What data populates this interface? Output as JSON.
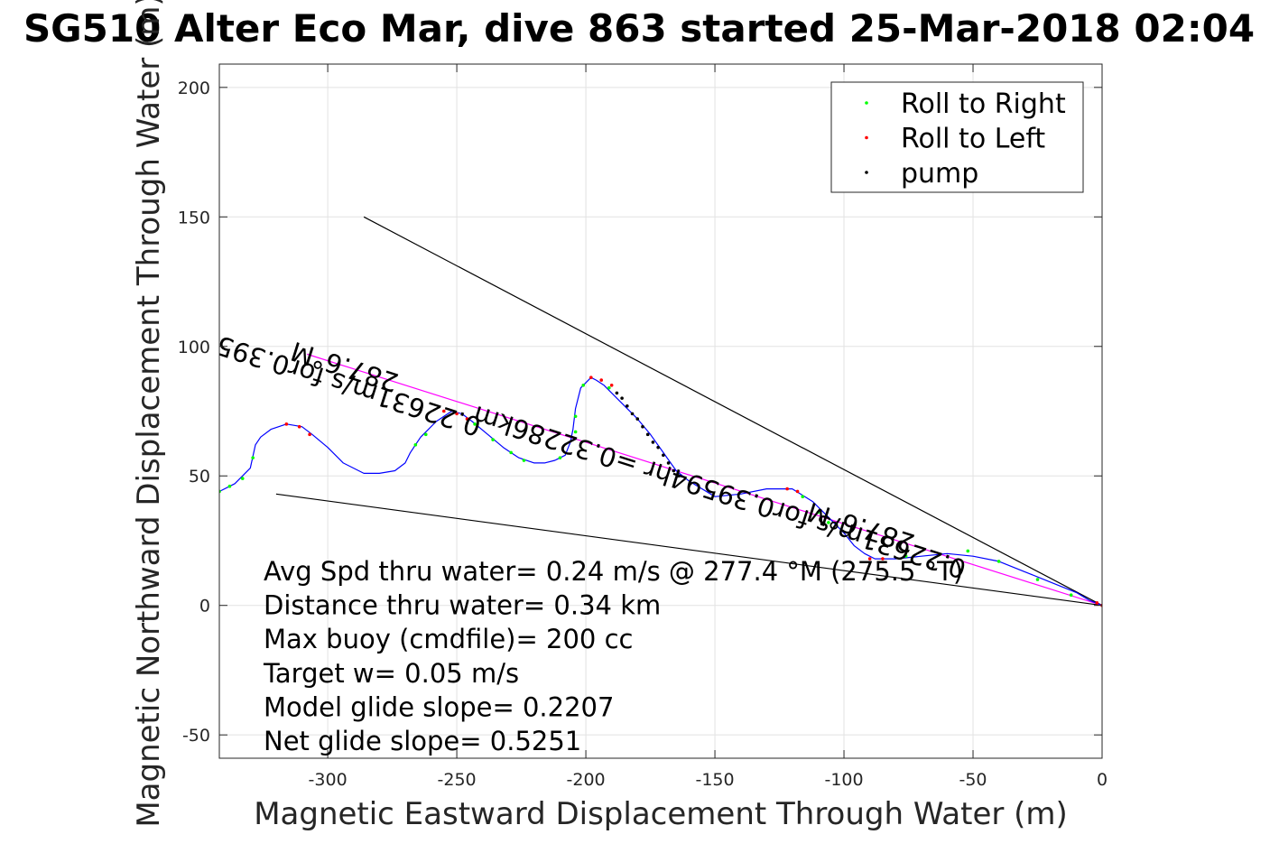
{
  "chart_data": {
    "type": "line",
    "title": "SG510 Alter Eco Mar, dive 863 started 25-Mar-2018 02:04",
    "xlabel": "Magnetic Eastward Displacement Through Water (m)",
    "ylabel": "Magnetic Northward Displacement Through Water (m)",
    "xlim": [
      -342,
      0
    ],
    "ylim": [
      -59,
      209
    ],
    "xticks": [
      -300,
      -250,
      -200,
      -150,
      -100,
      -50,
      0
    ],
    "yticks": [
      -50,
      0,
      50,
      100,
      150,
      200
    ],
    "grid": true,
    "legend_position": "top-right",
    "legend": [
      {
        "name": "Roll to Right",
        "color": "#00ff00"
      },
      {
        "name": "Roll to Left",
        "color": "#ff0000"
      },
      {
        "name": "pump",
        "color": "#000000"
      }
    ],
    "track": {
      "color": "#0000ff",
      "x": [
        -342,
        -336,
        -330,
        -328,
        -326,
        -322,
        -316,
        -310,
        -306,
        -300,
        -294,
        -286,
        -280,
        -274,
        -270,
        -268,
        -266,
        -264,
        -258,
        -252,
        -248,
        -244,
        -238,
        -232,
        -226,
        -220,
        -216,
        -212,
        -208,
        -206,
        -205,
        -204,
        -202,
        -198,
        -196,
        -193,
        -190,
        -185,
        -180,
        -175,
        -170,
        -165,
        -160,
        -150,
        -140,
        -130,
        -120,
        -112,
        -106,
        -100,
        -96,
        -92,
        -88,
        -80,
        -70,
        -60,
        -50,
        -40,
        -30,
        -20,
        -10,
        -5,
        0
      ],
      "y": [
        44,
        47,
        53,
        62,
        65,
        68,
        70,
        69,
        66,
        61,
        55,
        51,
        51,
        52,
        55,
        59,
        62,
        65,
        71,
        75,
        74,
        71,
        66,
        61,
        57,
        55,
        55,
        56,
        58,
        63,
        68,
        76,
        84,
        88,
        87,
        85,
        82,
        77,
        72,
        66,
        59,
        52,
        48,
        42,
        43,
        45,
        45,
        40,
        34,
        28,
        23,
        20,
        18,
        18,
        19,
        20,
        19,
        17,
        13,
        9,
        5,
        2,
        0
      ]
    },
    "roll_right_points": [
      [
        -342,
        44
      ],
      [
        -338,
        46
      ],
      [
        -333,
        49
      ],
      [
        -329,
        57
      ],
      [
        -266,
        62
      ],
      [
        -262,
        66
      ],
      [
        -243,
        70
      ],
      [
        -236,
        64
      ],
      [
        -229,
        59
      ],
      [
        -224,
        56
      ],
      [
        -210,
        57
      ],
      [
        -204,
        67
      ],
      [
        -204,
        73
      ],
      [
        -201,
        85
      ],
      [
        -191,
        84
      ],
      [
        -116,
        42
      ],
      [
        -110,
        36
      ],
      [
        -106,
        32
      ],
      [
        -76,
        19
      ],
      [
        -52,
        21
      ],
      [
        -40,
        17
      ],
      [
        -25,
        10
      ],
      [
        -12,
        4
      ]
    ],
    "roll_left_points": [
      [
        -316,
        70
      ],
      [
        -311,
        69
      ],
      [
        -307,
        66
      ],
      [
        -255,
        75
      ],
      [
        -250,
        74
      ],
      [
        -246,
        72
      ],
      [
        -198,
        88
      ],
      [
        -194,
        87
      ],
      [
        -190,
        85
      ],
      [
        -122,
        45
      ],
      [
        -118,
        44
      ],
      [
        -90,
        18
      ],
      [
        -85,
        18
      ],
      [
        -2,
        1
      ],
      [
        0,
        0
      ]
    ],
    "pump_points": [
      [
        -188,
        82
      ],
      [
        -186,
        80
      ],
      [
        -184,
        77
      ],
      [
        -182,
        74
      ],
      [
        -180,
        72
      ],
      [
        -178,
        69
      ],
      [
        -176,
        66
      ],
      [
        -174,
        63
      ],
      [
        -172,
        61
      ],
      [
        -170,
        58
      ],
      [
        -168,
        55
      ],
      [
        -166,
        52
      ],
      [
        -164,
        50
      ]
    ],
    "lines": [
      {
        "x": [
          -286,
          0
        ],
        "y": [
          150,
          0
        ],
        "color": "#000000"
      },
      {
        "x": [
          -320,
          0
        ],
        "y": [
          43,
          0
        ],
        "color": "#000000"
      },
      {
        "x": [
          -308,
          0
        ],
        "y": [
          97,
          0
        ],
        "color": "#ff00ff"
      }
    ],
    "annotations": [
      {
        "text": "287.6°M",
        "x": -272,
        "y": 89,
        "angle": 197.6
      },
      {
        "text": "0.22631m/s for0.39594hr =0.32286km",
        "x": -240,
        "y": 72,
        "angle": 197.6
      },
      {
        "text": "287.6°M",
        "x": -72,
        "y": 27,
        "angle": 197.6
      },
      {
        "text": "0.22631m/s for0.39594hr =0.32286km",
        "x": -52,
        "y": 17,
        "angle": 197.6
      }
    ],
    "stats": [
      "Avg Spd thru water=  0.24 m/s @ 277.4 °M (275.5 °T)",
      "Distance thru water=  0.34 km",
      "Max buoy (cmdfile)= 200 cc",
      "Target w= 0.05 m/s",
      "Model glide slope= 0.2207",
      "Net glide slope= 0.5251"
    ]
  }
}
